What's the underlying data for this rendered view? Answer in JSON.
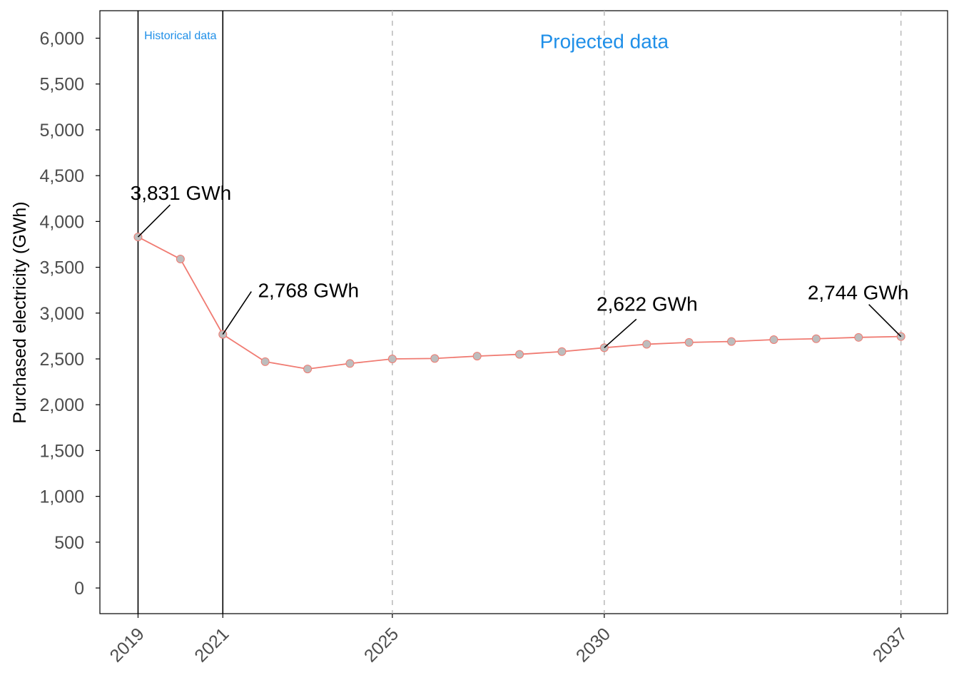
{
  "chart_data": {
    "type": "line",
    "ylabel": "Purchased electricity (GWh)",
    "xlabel": "",
    "ylim": [
      -280,
      6300
    ],
    "xlim": [
      2018.1,
      2038.1
    ],
    "yticks": [
      0,
      500,
      1000,
      1500,
      2000,
      2500,
      3000,
      3500,
      4000,
      4500,
      5000,
      5500,
      6000
    ],
    "ytick_labels": [
      "0",
      "500",
      "1,000",
      "1,500",
      "2,000",
      "2,500",
      "3,000",
      "3,500",
      "4,000",
      "4,500",
      "5,000",
      "5,500",
      "6,000"
    ],
    "xticks": [
      2019,
      2021,
      2025,
      2030,
      2037
    ],
    "xtick_labels": [
      "2019",
      "2021",
      "2025",
      "2030",
      "2037"
    ],
    "grid": false,
    "series": [
      {
        "x": [
          2019,
          2020,
          2021,
          2022,
          2023,
          2024,
          2025,
          2026,
          2027,
          2028,
          2029,
          2030,
          2031,
          2032,
          2033,
          2034,
          2035,
          2036,
          2037
        ],
        "values": [
          3831,
          3590,
          2768,
          2470,
          2390,
          2450,
          2500,
          2505,
          2530,
          2550,
          2580,
          2622,
          2660,
          2680,
          2690,
          2710,
          2720,
          2735,
          2744
        ],
        "line_color": "#f07b72",
        "marker_color": "#bdbdbd"
      }
    ],
    "solid_vlines": [
      2019,
      2021
    ],
    "dashed_vlines": [
      2025,
      2030,
      2037
    ],
    "regions": [
      {
        "label": "Historical data",
        "color": "#1f8fe8"
      },
      {
        "label": "Projected data",
        "color": "#1f8fe8"
      }
    ],
    "annotations": [
      {
        "text": "3,831 GWh",
        "x": 2019,
        "y": 3831
      },
      {
        "text": "2,768 GWh",
        "x": 2021,
        "y": 2768
      },
      {
        "text": "2,622 GWh",
        "x": 2030,
        "y": 2622
      },
      {
        "text": "2,744 GWh",
        "x": 2037,
        "y": 2744
      }
    ]
  }
}
